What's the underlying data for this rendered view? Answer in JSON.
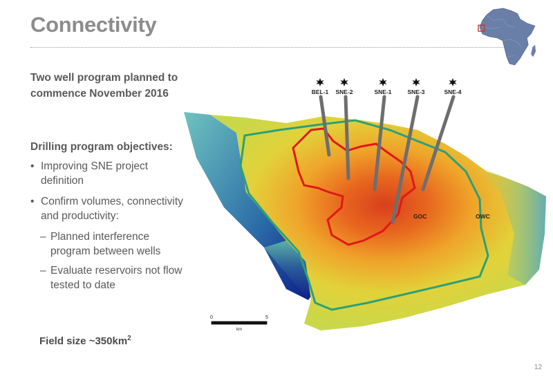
{
  "slide": {
    "title": "Connectivity",
    "page_number": "12"
  },
  "intro": "Two well program planned to commence November 2016",
  "objectives": {
    "heading": "Drilling program objectives:",
    "bullets": [
      {
        "marker": "•",
        "text": "Improving SNE project definition"
      },
      {
        "marker": "•",
        "text": "Confirm volumes, connectivity and productivity:"
      }
    ],
    "sub_bullets": [
      {
        "marker": "–",
        "text": "Planned interference program between wells"
      },
      {
        "marker": "–",
        "text": "Evaluate reservoirs not flow tested to date"
      }
    ]
  },
  "field_size": {
    "text": "Field size ~350km",
    "superscript": "2"
  },
  "map": {
    "wells": [
      "BEL-1",
      "SNE-2",
      "SNE-1",
      "SNE-3",
      "SNE-4"
    ],
    "contacts": {
      "goc": "GOC",
      "owc": "OWC"
    },
    "scale_bar": {
      "start": "0",
      "end": "5",
      "unit": "km"
    },
    "colors": {
      "goc_line": "#e01818",
      "owc_line": "#2aa07a",
      "well_track": "#6e6e6e"
    }
  },
  "inset": {
    "icon": "africa-locator-map-icon",
    "colors": {
      "land": "#6a7fa8",
      "marker": "#c0392b"
    }
  }
}
